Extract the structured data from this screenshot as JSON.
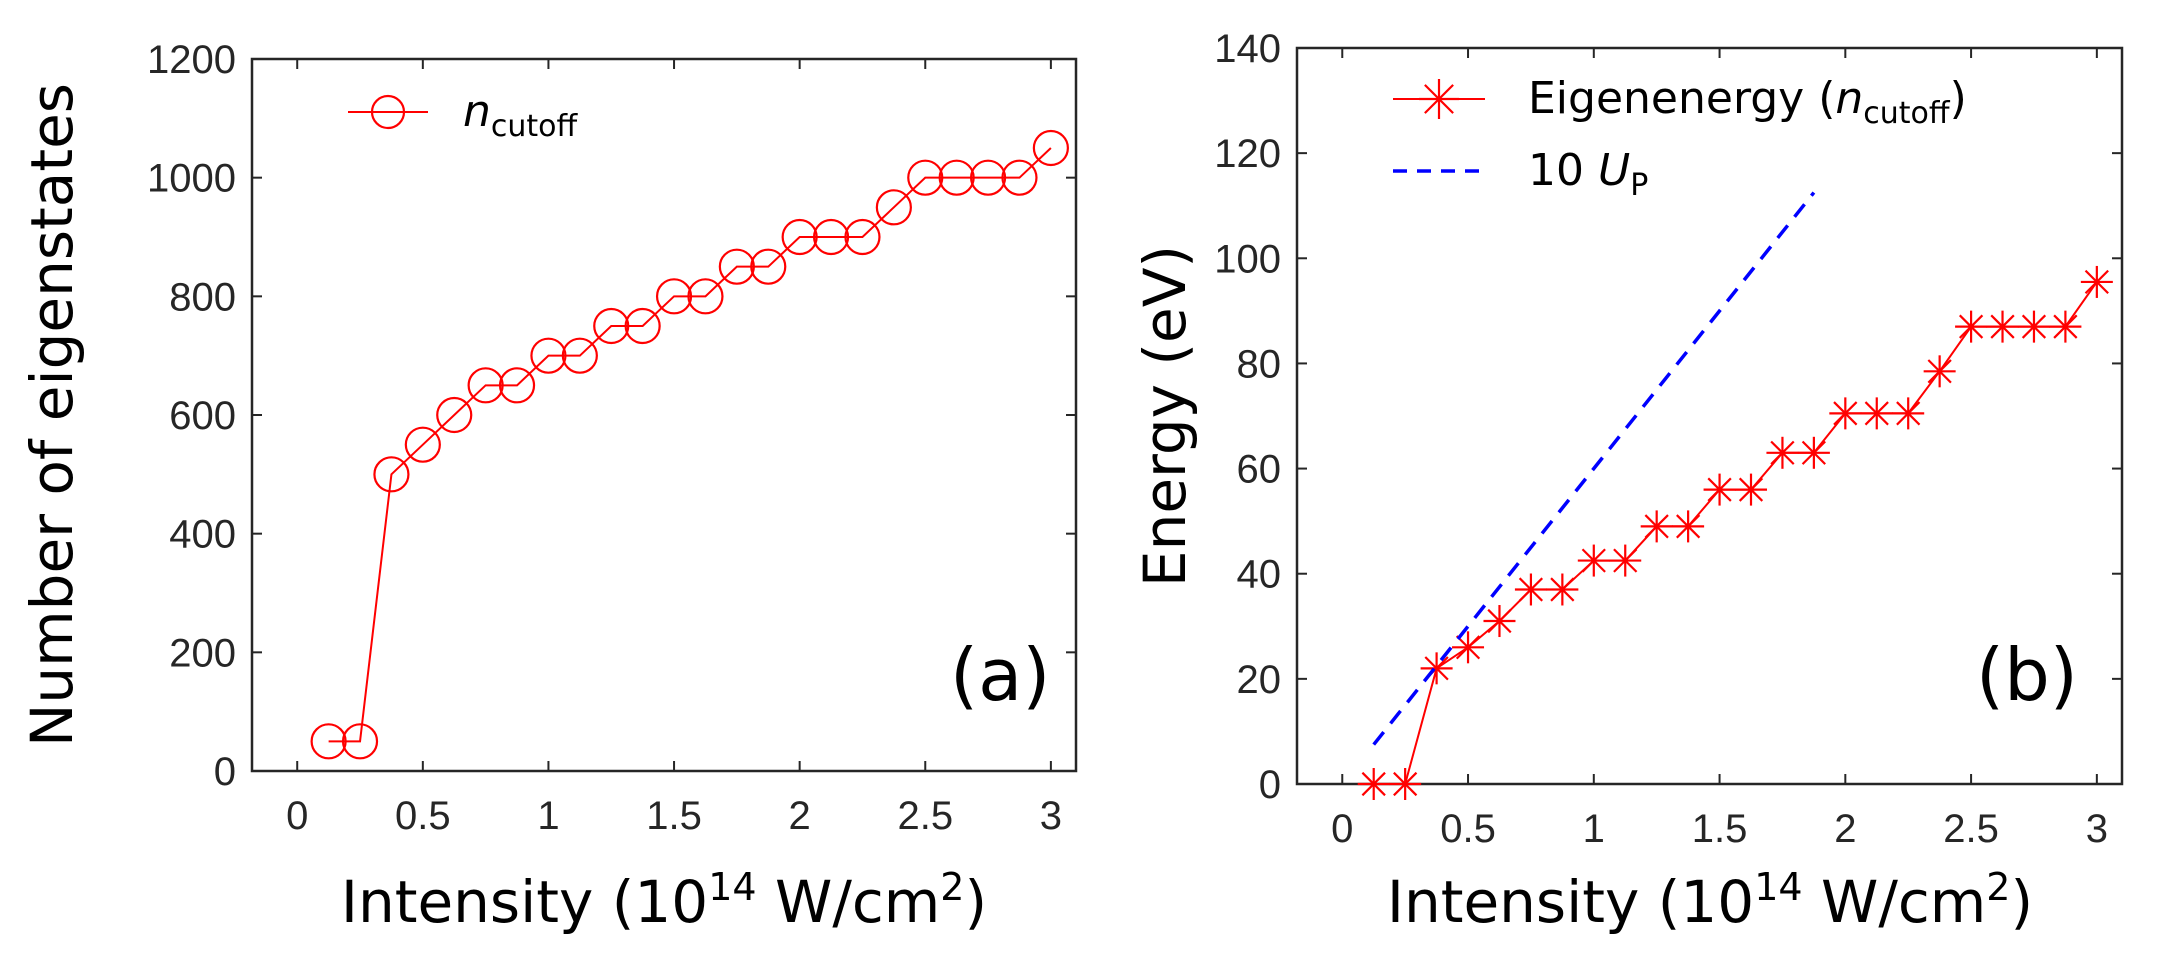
{
  "chart_data": [
    {
      "type": "line",
      "panel_label": "(a)",
      "xlabel_prefix": "Intensity (10",
      "xlabel_sup": "14",
      "xlabel_mid": " W/cm",
      "xlabel_sup2": "2",
      "xlabel_suffix": ")",
      "ylabel": "Number of eigenstates",
      "xlim": [
        -0.18,
        3.1
      ],
      "ylim": [
        0,
        1200
      ],
      "xticks": [
        "0",
        "0.5",
        "1",
        "1.5",
        "2",
        "2.5",
        "3"
      ],
      "xtick_values": [
        0,
        0.5,
        1,
        1.5,
        2,
        2.5,
        3
      ],
      "yticks": [
        "0",
        "200",
        "400",
        "600",
        "800",
        "1000",
        "1200"
      ],
      "ytick_values": [
        0,
        200,
        400,
        600,
        800,
        1000,
        1200
      ],
      "legend": [
        {
          "name_main": "n",
          "name_sub": "cutoff",
          "marker": "circle",
          "color": "#ff0000"
        }
      ],
      "series": [
        {
          "name": "n_cutoff",
          "color": "#ff0000",
          "marker": "circle",
          "x": [
            0.125,
            0.25,
            0.375,
            0.5,
            0.625,
            0.75,
            0.875,
            1.0,
            1.125,
            1.25,
            1.375,
            1.5,
            1.625,
            1.75,
            1.875,
            2.0,
            2.125,
            2.25,
            2.375,
            2.5,
            2.625,
            2.75,
            2.875,
            3.0
          ],
          "y": [
            50,
            50,
            500,
            550,
            600,
            650,
            650,
            700,
            700,
            750,
            750,
            800,
            800,
            850,
            850,
            900,
            900,
            900,
            950,
            1000,
            1000,
            1000,
            1000,
            1050
          ]
        }
      ]
    },
    {
      "type": "line",
      "panel_label": "(b)",
      "xlabel_prefix": "Intensity (10",
      "xlabel_sup": "14",
      "xlabel_mid": " W/cm",
      "xlabel_sup2": "2",
      "xlabel_suffix": ")",
      "ylabel": "Energy (eV)",
      "xlim": [
        -0.18,
        3.1
      ],
      "ylim": [
        0,
        140
      ],
      "xticks": [
        "0",
        "0.5",
        "1",
        "1.5",
        "2",
        "2.5",
        "3"
      ],
      "xtick_values": [
        0,
        0.5,
        1,
        1.5,
        2,
        2.5,
        3
      ],
      "yticks": [
        "0",
        "20",
        "40",
        "60",
        "80",
        "100",
        "120",
        "140"
      ],
      "ytick_values": [
        0,
        20,
        40,
        60,
        80,
        100,
        120,
        140
      ],
      "legend": [
        {
          "name_prefix": "Eigenenergy (",
          "name_main": "n",
          "name_sub": "cutoff",
          "name_suffix": ")",
          "marker": "star",
          "color": "#ff0000"
        },
        {
          "name_prefix": "10 ",
          "name_main": "U",
          "name_sub": "P",
          "name_suffix": "",
          "marker": "dashed",
          "color": "#0000ff"
        }
      ],
      "series": [
        {
          "name": "Eigenenergy (n_cutoff)",
          "color": "#ff0000",
          "marker": "star",
          "x": [
            0.125,
            0.25,
            0.375,
            0.5,
            0.625,
            0.75,
            0.875,
            1.0,
            1.125,
            1.25,
            1.375,
            1.5,
            1.625,
            1.75,
            1.875,
            2.0,
            2.125,
            2.25,
            2.375,
            2.5,
            2.625,
            2.75,
            2.875,
            3.0
          ],
          "y": [
            0,
            0,
            22,
            26,
            31,
            37,
            37,
            42.5,
            42.5,
            49,
            49,
            56,
            56,
            63,
            63,
            70.5,
            70.5,
            70.5,
            78.5,
            87,
            87,
            87,
            87,
            95.5
          ]
        },
        {
          "name": "10 U_P",
          "color": "#0000ff",
          "style": "dashed",
          "x": [
            0.125,
            1.875
          ],
          "y": [
            7.5,
            112.5
          ]
        }
      ]
    }
  ]
}
